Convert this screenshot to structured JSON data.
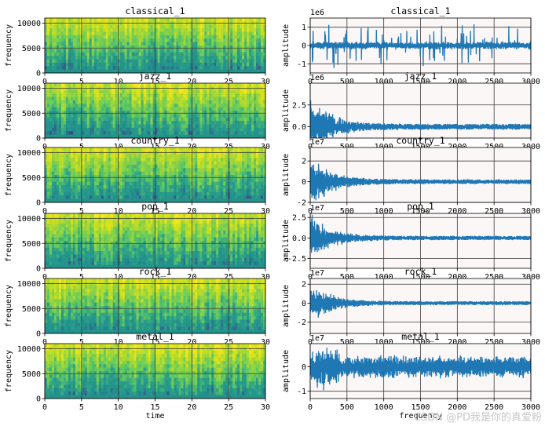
{
  "figure": {
    "watermark": "CSDN @PD我是你的真爱粉"
  },
  "colors": {
    "line": "#1f77b4",
    "wave_bg": "#fcf7f7",
    "grid": "#3a3a3a",
    "viridis": [
      "#440154",
      "#3b528b",
      "#21918c",
      "#2a9d8a",
      "#5ec962",
      "#9fd63a",
      "#d8e219",
      "#fde725"
    ]
  },
  "chart_data": [
    {
      "type": "heatmap",
      "title": "classical_1",
      "ylabel": "frequency",
      "xlabel": "",
      "xlim": [
        0,
        30
      ],
      "ylim": [
        0,
        11025
      ],
      "xticks": [
        0,
        5,
        10,
        15,
        20,
        25,
        30
      ],
      "yticks": [
        0,
        5000,
        10000
      ],
      "grid": true
    },
    {
      "type": "line",
      "title": "classical_1",
      "ylabel": "amplitude",
      "xlabel": "",
      "scale_label": "1e6",
      "xlim": [
        0,
        3000
      ],
      "ylim": [
        -1.5,
        1.5
      ],
      "xticks": [
        0,
        500,
        1000,
        1500,
        2000,
        2500,
        3000
      ],
      "yticks": [
        -1,
        0,
        1
      ],
      "grid": true,
      "seed": 11,
      "amp_max": 1.3,
      "pattern": "bursts"
    },
    {
      "type": "heatmap",
      "title": "jazz_1",
      "ylabel": "frequency",
      "xlabel": "",
      "xlim": [
        0,
        30
      ],
      "ylim": [
        0,
        11025
      ],
      "xticks": [
        0,
        5,
        10,
        15,
        20,
        25,
        30
      ],
      "yticks": [
        0,
        5000,
        10000
      ],
      "grid": true
    },
    {
      "type": "line",
      "title": "jazz_1",
      "ylabel": "amplitude",
      "xlabel": "",
      "scale_label": "1e6",
      "xlim": [
        0,
        3000
      ],
      "ylim": [
        -1.3,
        5.0
      ],
      "xticks": [
        0,
        500,
        1000,
        1500,
        2000,
        2500,
        3000
      ],
      "yticks": [
        0.0,
        2.5
      ],
      "grid": true,
      "seed": 23,
      "amp_max": 4.2,
      "pattern": "decay"
    },
    {
      "type": "heatmap",
      "title": "country_1",
      "ylabel": "frequency",
      "xlabel": "",
      "xlim": [
        0,
        30
      ],
      "ylim": [
        0,
        11025
      ],
      "xticks": [
        0,
        5,
        10,
        15,
        20,
        25,
        30
      ],
      "yticks": [
        0,
        5000,
        10000
      ],
      "grid": true
    },
    {
      "type": "line",
      "title": "country_1",
      "ylabel": "amplitude",
      "xlabel": "",
      "scale_label": "1e7",
      "xlim": [
        0,
        3000
      ],
      "ylim": [
        -2,
        3.3
      ],
      "xticks": [
        0,
        500,
        1000,
        1500,
        2000,
        2500,
        3000
      ],
      "yticks": [
        -2,
        0,
        2
      ],
      "grid": true,
      "seed": 37,
      "amp_max": 2.9,
      "pattern": "decay"
    },
    {
      "type": "heatmap",
      "title": "pop_1",
      "ylabel": "frequency",
      "xlabel": "",
      "xlim": [
        0,
        30
      ],
      "ylim": [
        0,
        11025
      ],
      "xticks": [
        0,
        5,
        10,
        15,
        20,
        25,
        30
      ],
      "yticks": [
        0,
        5000,
        10000
      ],
      "grid": true
    },
    {
      "type": "line",
      "title": "pop_1",
      "ylabel": "amplitude",
      "xlabel": "",
      "scale_label": "1e7",
      "xlim": [
        0,
        3000
      ],
      "ylim": [
        -3.7,
        3.0
      ],
      "xticks": [
        0,
        500,
        1000,
        1500,
        2000,
        2500,
        3000
      ],
      "yticks": [
        -2.5,
        0.0,
        2.5
      ],
      "grid": true,
      "seed": 41,
      "amp_max": 3.3,
      "pattern": "decay"
    },
    {
      "type": "heatmap",
      "title": "rock_1",
      "ylabel": "frequency",
      "xlabel": "",
      "xlim": [
        0,
        30
      ],
      "ylim": [
        0,
        11025
      ],
      "xticks": [
        0,
        5,
        10,
        15,
        20,
        25,
        30
      ],
      "yticks": [
        0,
        5000,
        10000
      ],
      "grid": true
    },
    {
      "type": "line",
      "title": "rock_1",
      "ylabel": "amplitude",
      "xlabel": "",
      "scale_label": "1e7",
      "xlim": [
        0,
        3000
      ],
      "ylim": [
        -3.2,
        2.6
      ],
      "xticks": [
        0,
        500,
        1000,
        1500,
        2000,
        2500,
        3000
      ],
      "yticks": [
        -2,
        0,
        2
      ],
      "grid": true,
      "seed": 53,
      "amp_max": 2.6,
      "pattern": "decay"
    },
    {
      "type": "heatmap",
      "title": "metal_1",
      "ylabel": "frequency",
      "xlabel": "time",
      "xlim": [
        0,
        30
      ],
      "ylim": [
        0,
        11025
      ],
      "xticks": [
        0,
        5,
        10,
        15,
        20,
        25,
        30
      ],
      "yticks": [
        0,
        5000,
        10000
      ],
      "grid": true
    },
    {
      "type": "line",
      "title": "metal_1",
      "ylabel": "amplitude",
      "xlabel": "frequency",
      "scale_label": "1e7",
      "xlim": [
        0,
        3000
      ],
      "ylim": [
        -1.3,
        0.95
      ],
      "xticks": [
        0,
        500,
        1000,
        1500,
        2000,
        2500,
        3000
      ],
      "yticks": [
        -1,
        0
      ],
      "grid": true,
      "seed": 67,
      "amp_max": 1.1,
      "pattern": "dense"
    }
  ]
}
